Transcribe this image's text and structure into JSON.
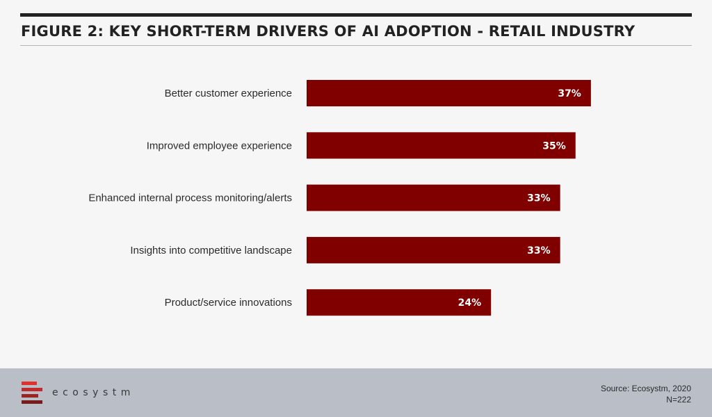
{
  "title": "FIGURE 2: KEY SHORT-TERM DRIVERS OF AI ADOPTION - RETAIL INDUSTRY",
  "colors": {
    "bar": "#800000",
    "bar_label": "#ffffff",
    "category_label": "#2a2a2a",
    "footer_bg": "#b9bec7"
  },
  "chart_data": {
    "type": "bar",
    "orientation": "horizontal",
    "categories": [
      "Better customer experience",
      "Improved employee experience",
      "Enhanced internal process monitoring/alerts",
      "Insights into competitive landscape",
      "Product/service innovations"
    ],
    "values": [
      37,
      35,
      33,
      33,
      24
    ],
    "data_labels": [
      "37%",
      "35%",
      "33%",
      "33%",
      "24%"
    ],
    "unit": "%",
    "grid": false,
    "legend": "none"
  },
  "footer": {
    "logo_text": "ecosystm",
    "source": "Source: Ecosystm, 2020",
    "sample": "N=222"
  }
}
